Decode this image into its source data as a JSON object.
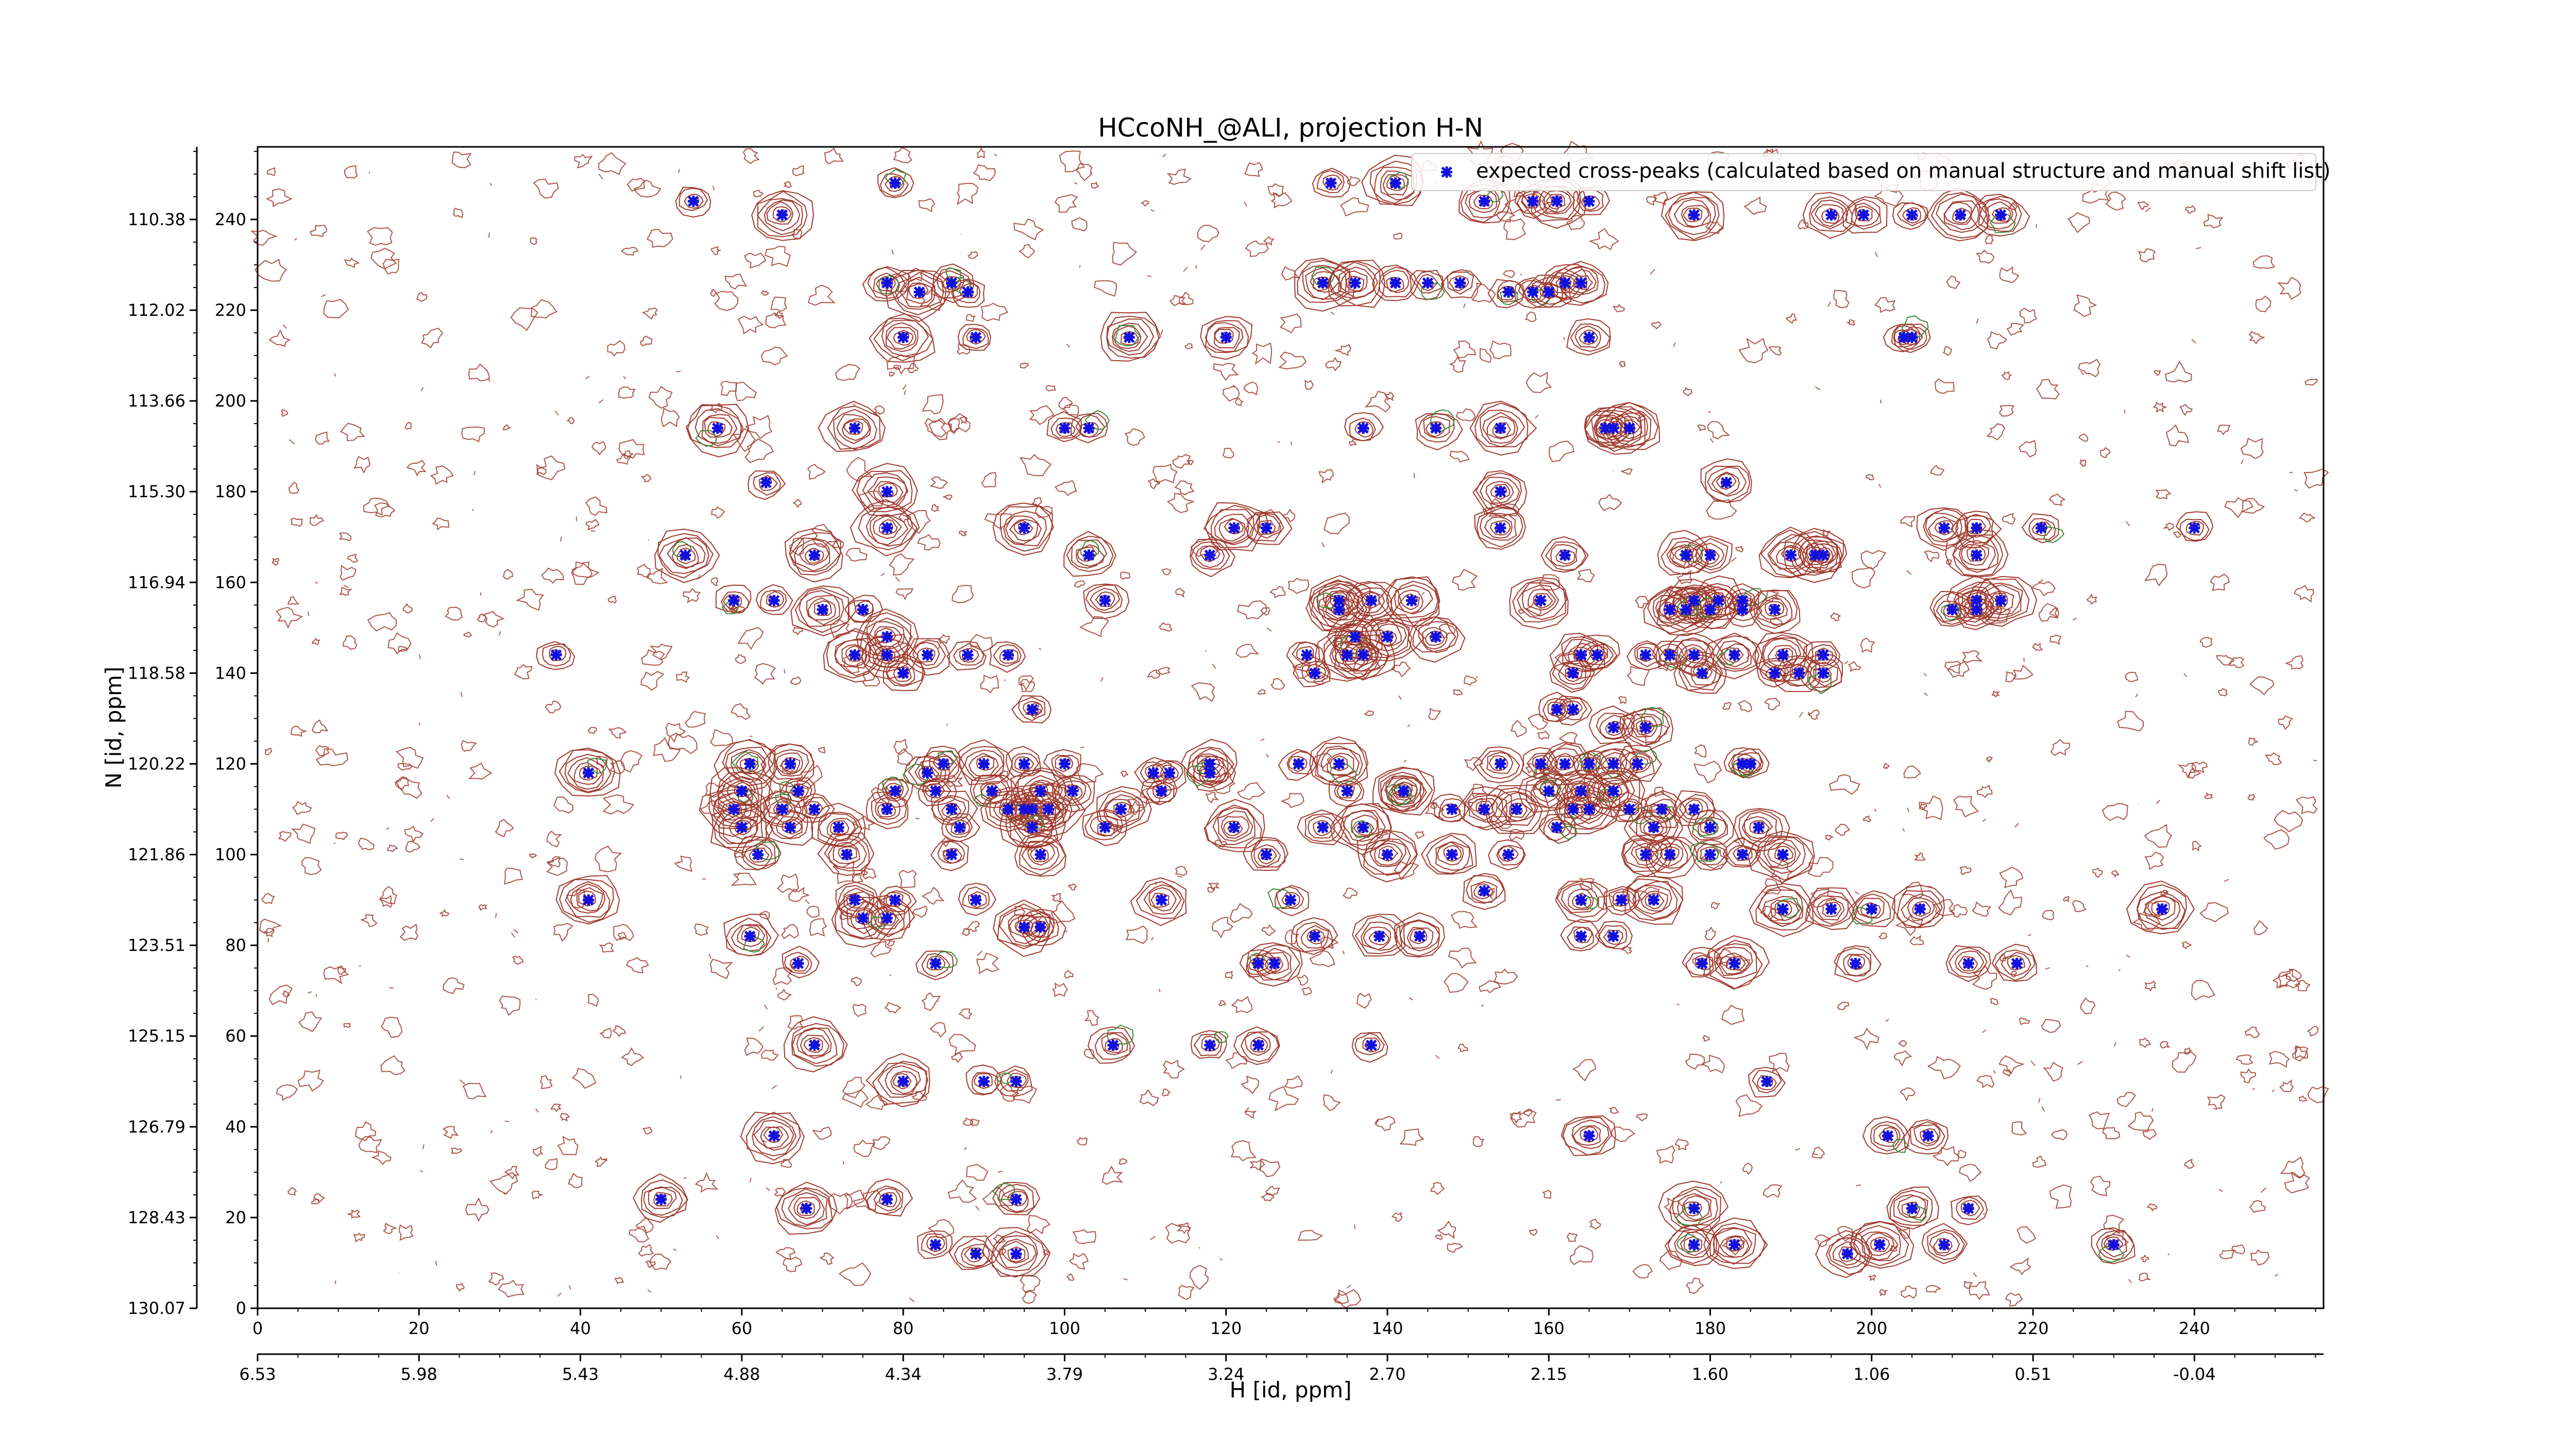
{
  "chart_data": {
    "type": "scatter",
    "title": "HCcoNH_@ALI, projection H-N",
    "xlabel": "H [id, ppm]",
    "ylabel": "N [id, ppm]",
    "xlim": [
      0,
      256
    ],
    "ylim": [
      0,
      256
    ],
    "x_ticks": [
      0,
      20,
      40,
      60,
      80,
      100,
      120,
      140,
      160,
      180,
      200,
      220,
      240
    ],
    "y_ticks": [
      0,
      20,
      40,
      60,
      80,
      100,
      120,
      140,
      160,
      180,
      200,
      220,
      240
    ],
    "x_ppm_ticks": [
      "6.53",
      "5.98",
      "5.43",
      "4.88",
      "4.34",
      "3.79",
      "3.24",
      "2.70",
      "2.15",
      "1.60",
      "1.06",
      "0.51",
      "-0.04"
    ],
    "y_ppm_ticks": [
      "130.07",
      "128.43",
      "126.79",
      "125.15",
      "123.51",
      "121.86",
      "120.22",
      "118.58",
      "116.94",
      "115.30",
      "113.66",
      "112.02",
      "110.38"
    ],
    "legend": {
      "label": "expected cross-peaks (calculated based on manual structure and manual shift list)",
      "position": "upper-right"
    },
    "colors": {
      "marker": "#1010e0",
      "contour_positive": "#a03a2e",
      "contour_negative": "#3a8a3a"
    },
    "series": [
      {
        "name": "expected cross-peaks (calculated based on manual structure and manual shift list)",
        "points": [
          [
            65,
            241
          ],
          [
            79,
            248
          ],
          [
            54,
            244
          ],
          [
            133,
            248
          ],
          [
            141,
            248
          ],
          [
            152,
            244
          ],
          [
            158,
            244
          ],
          [
            161,
            244
          ],
          [
            165,
            244
          ],
          [
            178,
            241
          ],
          [
            195,
            241
          ],
          [
            199,
            241
          ],
          [
            205,
            241
          ],
          [
            211,
            241
          ],
          [
            216,
            241
          ],
          [
            78,
            226
          ],
          [
            86,
            226
          ],
          [
            82,
            224
          ],
          [
            88,
            224
          ],
          [
            132,
            226
          ],
          [
            136,
            226
          ],
          [
            141,
            226
          ],
          [
            145,
            226
          ],
          [
            149,
            226
          ],
          [
            155,
            224
          ],
          [
            158,
            224
          ],
          [
            160,
            224
          ],
          [
            162,
            226
          ],
          [
            164,
            226
          ],
          [
            80,
            214
          ],
          [
            89,
            214
          ],
          [
            108,
            214
          ],
          [
            120,
            214
          ],
          [
            165,
            214
          ],
          [
            204,
            214
          ],
          [
            205,
            214
          ],
          [
            57,
            194
          ],
          [
            74,
            194
          ],
          [
            100,
            194
          ],
          [
            103,
            194
          ],
          [
            137,
            194
          ],
          [
            146,
            194
          ],
          [
            154,
            194
          ],
          [
            167,
            194
          ],
          [
            168,
            194
          ],
          [
            170,
            194
          ],
          [
            63,
            182
          ],
          [
            78,
            180
          ],
          [
            154,
            180
          ],
          [
            182,
            182
          ],
          [
            78,
            172
          ],
          [
            95,
            172
          ],
          [
            121,
            172
          ],
          [
            125,
            172
          ],
          [
            154,
            172
          ],
          [
            209,
            172
          ],
          [
            213,
            172
          ],
          [
            221,
            172
          ],
          [
            240,
            172
          ],
          [
            53,
            166
          ],
          [
            69,
            166
          ],
          [
            103,
            166
          ],
          [
            118,
            166
          ],
          [
            162,
            166
          ],
          [
            177,
            166
          ],
          [
            180,
            166
          ],
          [
            190,
            166
          ],
          [
            193,
            166
          ],
          [
            194,
            166
          ],
          [
            213,
            166
          ],
          [
            59,
            156
          ],
          [
            64,
            156
          ],
          [
            105,
            156
          ],
          [
            134,
            156
          ],
          [
            138,
            156
          ],
          [
            143,
            156
          ],
          [
            159,
            156
          ],
          [
            178,
            156
          ],
          [
            181,
            156
          ],
          [
            184,
            156
          ],
          [
            213,
            156
          ],
          [
            216,
            156
          ],
          [
            75,
            154
          ],
          [
            70,
            154
          ],
          [
            134,
            154
          ],
          [
            175,
            154
          ],
          [
            177,
            154
          ],
          [
            180,
            154
          ],
          [
            184,
            154
          ],
          [
            188,
            154
          ],
          [
            210,
            154
          ],
          [
            213,
            154
          ],
          [
            78,
            148
          ],
          [
            136,
            148
          ],
          [
            140,
            148
          ],
          [
            146,
            148
          ],
          [
            37,
            144
          ],
          [
            74,
            144
          ],
          [
            78,
            144
          ],
          [
            83,
            144
          ],
          [
            88,
            144
          ],
          [
            93,
            144
          ],
          [
            130,
            144
          ],
          [
            135,
            144
          ],
          [
            137,
            144
          ],
          [
            164,
            144
          ],
          [
            166,
            144
          ],
          [
            172,
            144
          ],
          [
            175,
            144
          ],
          [
            178,
            144
          ],
          [
            183,
            144
          ],
          [
            189,
            144
          ],
          [
            194,
            144
          ],
          [
            80,
            140
          ],
          [
            131,
            140
          ],
          [
            163,
            140
          ],
          [
            179,
            140
          ],
          [
            188,
            140
          ],
          [
            191,
            140
          ],
          [
            194,
            140
          ],
          [
            96,
            132
          ],
          [
            161,
            132
          ],
          [
            163,
            132
          ],
          [
            168,
            128
          ],
          [
            172,
            128
          ],
          [
            41,
            118
          ],
          [
            61,
            120
          ],
          [
            66,
            120
          ],
          [
            83,
            118
          ],
          [
            85,
            120
          ],
          [
            90,
            120
          ],
          [
            95,
            120
          ],
          [
            100,
            120
          ],
          [
            111,
            118
          ],
          [
            113,
            118
          ],
          [
            118,
            118
          ],
          [
            118,
            120
          ],
          [
            129,
            120
          ],
          [
            134,
            120
          ],
          [
            142,
            114
          ],
          [
            154,
            120
          ],
          [
            159,
            120
          ],
          [
            162,
            120
          ],
          [
            165,
            120
          ],
          [
            168,
            120
          ],
          [
            171,
            120
          ],
          [
            184,
            120
          ],
          [
            185,
            120
          ],
          [
            60,
            114
          ],
          [
            67,
            114
          ],
          [
            79,
            114
          ],
          [
            84,
            114
          ],
          [
            91,
            114
          ],
          [
            97,
            114
          ],
          [
            101,
            114
          ],
          [
            112,
            114
          ],
          [
            135,
            114
          ],
          [
            142,
            114
          ],
          [
            160,
            114
          ],
          [
            164,
            114
          ],
          [
            168,
            114
          ],
          [
            59,
            110
          ],
          [
            65,
            110
          ],
          [
            69,
            110
          ],
          [
            78,
            110
          ],
          [
            86,
            110
          ],
          [
            93,
            110
          ],
          [
            95,
            110
          ],
          [
            96,
            110
          ],
          [
            98,
            110
          ],
          [
            107,
            110
          ],
          [
            148,
            110
          ],
          [
            152,
            110
          ],
          [
            156,
            110
          ],
          [
            163,
            110
          ],
          [
            165,
            110
          ],
          [
            170,
            110
          ],
          [
            174,
            110
          ],
          [
            178,
            110
          ],
          [
            60,
            106
          ],
          [
            66,
            106
          ],
          [
            72,
            106
          ],
          [
            87,
            106
          ],
          [
            96,
            106
          ],
          [
            105,
            106
          ],
          [
            121,
            106
          ],
          [
            132,
            106
          ],
          [
            137,
            106
          ],
          [
            161,
            106
          ],
          [
            173,
            106
          ],
          [
            180,
            106
          ],
          [
            186,
            106
          ],
          [
            62,
            100
          ],
          [
            73,
            100
          ],
          [
            86,
            100
          ],
          [
            97,
            100
          ],
          [
            125,
            100
          ],
          [
            140,
            100
          ],
          [
            148,
            100
          ],
          [
            155,
            100
          ],
          [
            172,
            100
          ],
          [
            175,
            100
          ],
          [
            180,
            100
          ],
          [
            184,
            100
          ],
          [
            189,
            100
          ],
          [
            41,
            90
          ],
          [
            74,
            90
          ],
          [
            79,
            90
          ],
          [
            89,
            90
          ],
          [
            112,
            90
          ],
          [
            128,
            90
          ],
          [
            152,
            92
          ],
          [
            164,
            90
          ],
          [
            169,
            90
          ],
          [
            173,
            90
          ],
          [
            189,
            88
          ],
          [
            195,
            88
          ],
          [
            200,
            88
          ],
          [
            206,
            88
          ],
          [
            236,
            88
          ],
          [
            61,
            82
          ],
          [
            75,
            86
          ],
          [
            78,
            86
          ],
          [
            95,
            84
          ],
          [
            97,
            84
          ],
          [
            139,
            82
          ],
          [
            144,
            82
          ],
          [
            131,
            82
          ],
          [
            164,
            82
          ],
          [
            168,
            82
          ],
          [
            67,
            76
          ],
          [
            84,
            76
          ],
          [
            124,
            76
          ],
          [
            126,
            76
          ],
          [
            179,
            76
          ],
          [
            183,
            76
          ],
          [
            198,
            76
          ],
          [
            212,
            76
          ],
          [
            218,
            76
          ],
          [
            69,
            58
          ],
          [
            106,
            58
          ],
          [
            118,
            58
          ],
          [
            124,
            58
          ],
          [
            138,
            58
          ],
          [
            80,
            50
          ],
          [
            90,
            50
          ],
          [
            94,
            50
          ],
          [
            187,
            50
          ],
          [
            64,
            38
          ],
          [
            165,
            38
          ],
          [
            202,
            38
          ],
          [
            207,
            38
          ],
          [
            50,
            24
          ],
          [
            68,
            22
          ],
          [
            78,
            24
          ],
          [
            94,
            24
          ],
          [
            178,
            22
          ],
          [
            205,
            22
          ],
          [
            212,
            22
          ],
          [
            84,
            14
          ],
          [
            89,
            12
          ],
          [
            94,
            12
          ],
          [
            178,
            14
          ],
          [
            183,
            14
          ],
          [
            197,
            12
          ],
          [
            201,
            14
          ],
          [
            209,
            14
          ],
          [
            230,
            14
          ]
        ]
      }
    ]
  }
}
